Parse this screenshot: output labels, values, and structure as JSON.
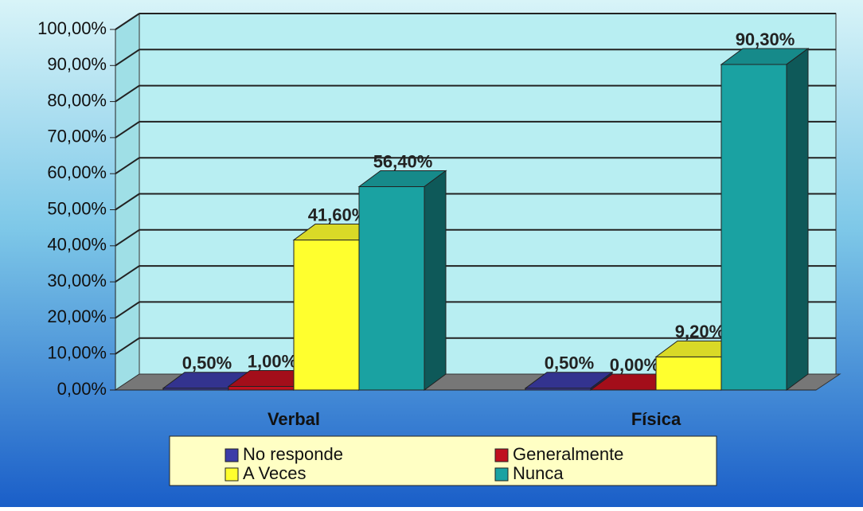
{
  "chart_data": {
    "type": "bar3d",
    "categories": [
      "Verbal",
      "Física"
    ],
    "series": [
      {
        "name": "No responde",
        "color": "#3c3ca8",
        "values": [
          0.5,
          0.5
        ],
        "value_labels": [
          "0,50%",
          "0,50%"
        ]
      },
      {
        "name": "Generalmente",
        "color": "#c0101e",
        "values": [
          1.0,
          0.0
        ],
        "value_labels": [
          "1,00%",
          "0,00%"
        ]
      },
      {
        "name": "A Veces",
        "color": "#ffff2e",
        "values": [
          41.6,
          9.2
        ],
        "value_labels": [
          "41,60%",
          "9,20%"
        ]
      },
      {
        "name": "Nunca",
        "color": "#1aa2a2",
        "values": [
          56.4,
          90.3
        ],
        "value_labels": [
          "56,40%",
          "90,30%"
        ]
      }
    ],
    "ylim": [
      0,
      100
    ],
    "yticks": [
      {
        "value": 0,
        "label": "0,00%"
      },
      {
        "value": 10,
        "label": "10,00%"
      },
      {
        "value": 20,
        "label": "20,00%"
      },
      {
        "value": 30,
        "label": "30,00%"
      },
      {
        "value": 40,
        "label": "40,00%"
      },
      {
        "value": 50,
        "label": "50,00%"
      },
      {
        "value": 60,
        "label": "60,00%"
      },
      {
        "value": 70,
        "label": "70,00%"
      },
      {
        "value": 80,
        "label": "80,00%"
      },
      {
        "value": 90,
        "label": "90,00%"
      },
      {
        "value": 100,
        "label": "100,00%"
      }
    ],
    "grid": true
  }
}
